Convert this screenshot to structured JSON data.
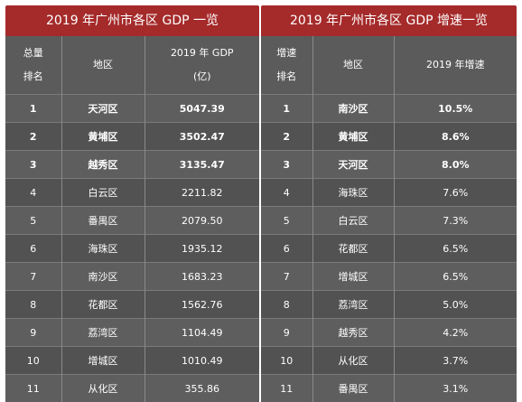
{
  "left": {
    "title": "2019 年广州市各区 GDP 一览",
    "headers": {
      "rank_line1": "总量",
      "rank_line2": "排名",
      "district": "地区",
      "gdp_line1": "2019 年 GDP",
      "gdp_line2": "(亿)"
    },
    "rows": [
      {
        "rank": "1",
        "district": "天河区",
        "value": "5047.39",
        "bold": true
      },
      {
        "rank": "2",
        "district": "黄埔区",
        "value": "3502.47",
        "bold": true
      },
      {
        "rank": "3",
        "district": "越秀区",
        "value": "3135.47",
        "bold": true
      },
      {
        "rank": "4",
        "district": "白云区",
        "value": "2211.82",
        "bold": false
      },
      {
        "rank": "5",
        "district": "番禺区",
        "value": "2079.50",
        "bold": false
      },
      {
        "rank": "6",
        "district": "海珠区",
        "value": "1935.12",
        "bold": false
      },
      {
        "rank": "7",
        "district": "南沙区",
        "value": "1683.23",
        "bold": false
      },
      {
        "rank": "8",
        "district": "花都区",
        "value": "1562.76",
        "bold": false
      },
      {
        "rank": "9",
        "district": "荔湾区",
        "value": "1104.49",
        "bold": false
      },
      {
        "rank": "10",
        "district": "增城区",
        "value": "1010.49",
        "bold": false
      },
      {
        "rank": "11",
        "district": "从化区",
        "value": "355.86",
        "bold": false
      }
    ]
  },
  "right": {
    "title": "2019 年广州市各区 GDP 增速一览",
    "headers": {
      "rank_line1": "增速",
      "rank_line2": "排名",
      "district": "地区",
      "growth": "2019 年增速"
    },
    "rows": [
      {
        "rank": "1",
        "district": "南沙区",
        "value": "10.5%",
        "bold": true
      },
      {
        "rank": "2",
        "district": "黄埔区",
        "value": "8.6%",
        "bold": true
      },
      {
        "rank": "3",
        "district": "天河区",
        "value": "8.0%",
        "bold": true
      },
      {
        "rank": "4",
        "district": "海珠区",
        "value": "7.6%",
        "bold": false
      },
      {
        "rank": "5",
        "district": "白云区",
        "value": "7.3%",
        "bold": false
      },
      {
        "rank": "6",
        "district": "花都区",
        "value": "6.5%",
        "bold": false
      },
      {
        "rank": "7",
        "district": "增城区",
        "value": "6.5%",
        "bold": false
      },
      {
        "rank": "8",
        "district": "荔湾区",
        "value": "5.0%",
        "bold": false
      },
      {
        "rank": "9",
        "district": "越秀区",
        "value": "4.2%",
        "bold": false
      },
      {
        "rank": "10",
        "district": "从化区",
        "value": "3.7%",
        "bold": false
      },
      {
        "rank": "11",
        "district": "番禺区",
        "value": "3.1%",
        "bold": false
      }
    ]
  },
  "colors": {
    "title_bg": "#a52a2a",
    "header_bg": "#5b5b5b",
    "row_odd": "#5e5e5e",
    "row_even": "#525252"
  }
}
